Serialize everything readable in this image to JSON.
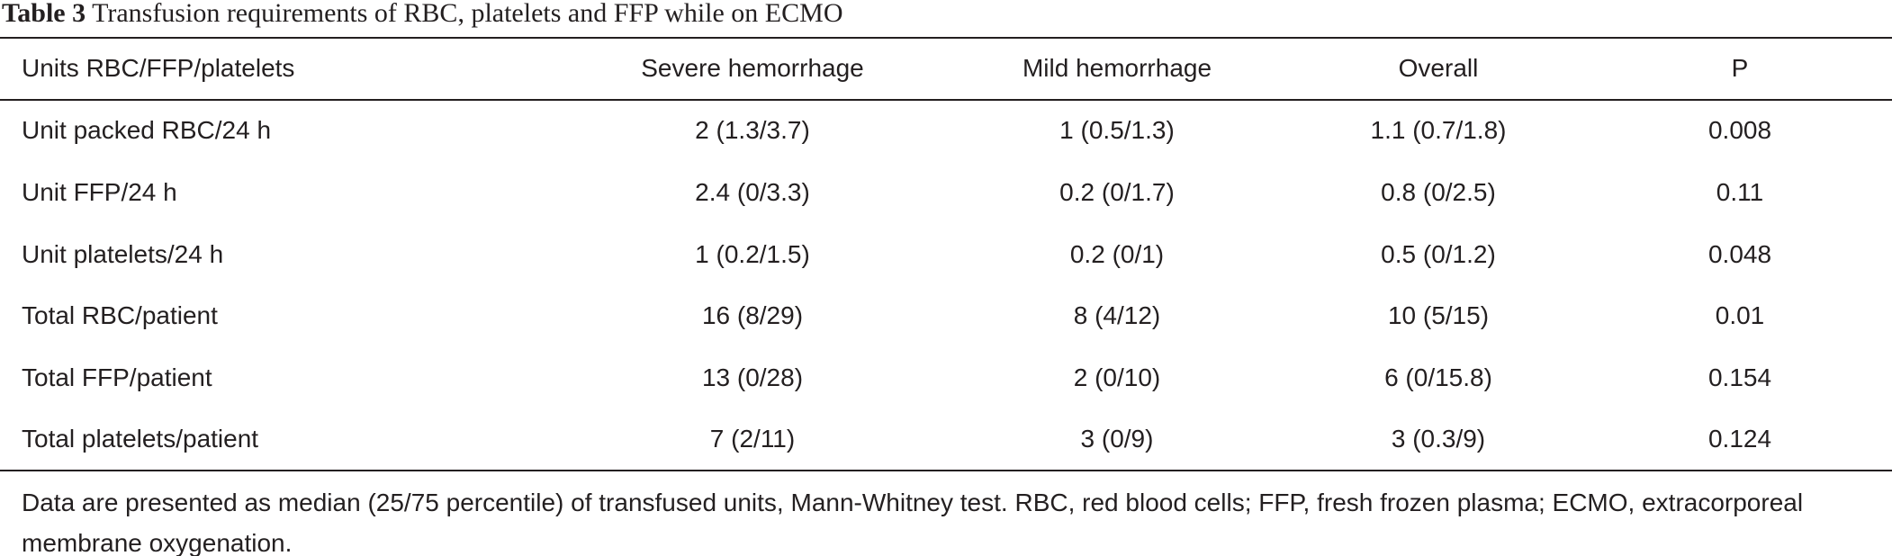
{
  "caption": {
    "label": "Table 3",
    "text": "Transfusion requirements of RBC, platelets and FFP while on ECMO"
  },
  "table": {
    "header": [
      "Units RBC/FFP/platelets",
      "Severe hemorrhage",
      "Mild hemorrhage",
      "Overall",
      "P"
    ],
    "rows": [
      [
        "Unit packed RBC/24 h",
        "2 (1.3/3.7)",
        "1 (0.5/1.3)",
        "1.1 (0.7/1.8)",
        "0.008"
      ],
      [
        "Unit FFP/24 h",
        "2.4 (0/3.3)",
        "0.2 (0/1.7)",
        "0.8 (0/2.5)",
        "0.11"
      ],
      [
        "Unit platelets/24 h",
        "1 (0.2/1.5)",
        "0.2 (0/1)",
        "0.5 (0/1.2)",
        "0.048"
      ],
      [
        "Total RBC/patient",
        "16 (8/29)",
        "8 (4/12)",
        "10 (5/15)",
        "0.01"
      ],
      [
        "Total FFP/patient",
        "13 (0/28)",
        "2 (0/10)",
        "6 (0/15.8)",
        "0.154"
      ],
      [
        "Total platelets/patient",
        "7 (2/11)",
        "3 (0/9)",
        "3 (0.3/9)",
        "0.124"
      ]
    ]
  },
  "footnote": "Data are presented as median (25/75 percentile) of transfused units, Mann-Whitney test. RBC, red blood cells; FFP, fresh frozen plasma; ECMO, extracorporeal membrane oxygenation."
}
